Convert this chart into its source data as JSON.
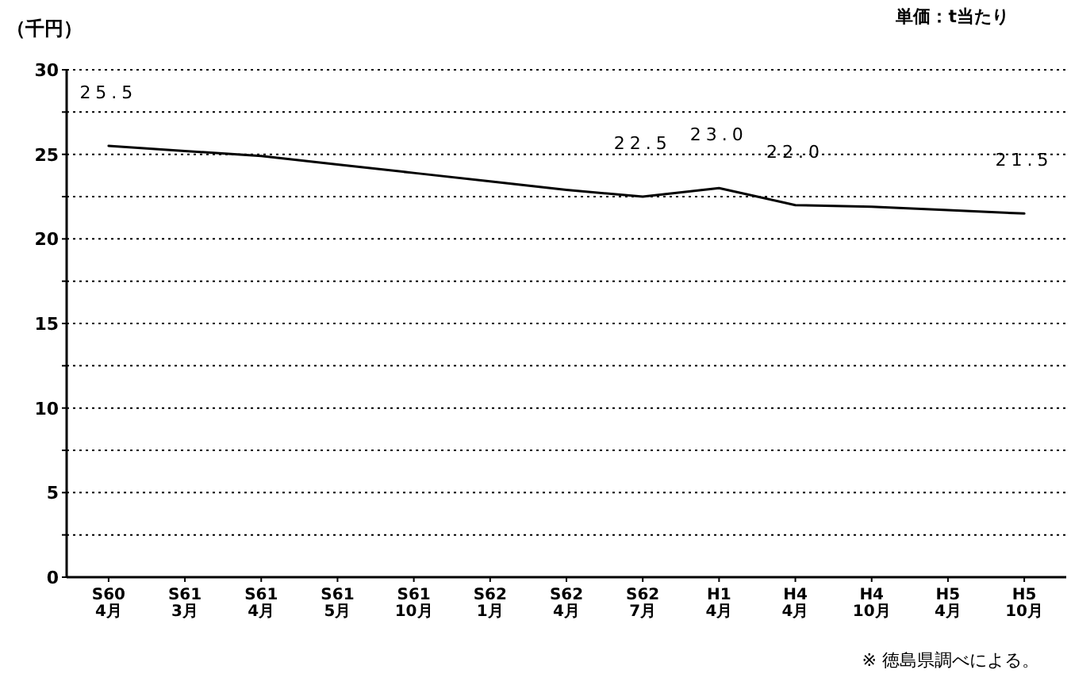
{
  "chart_data": {
    "type": "line",
    "ylabel": "（千円）",
    "categories": [
      "S60\n4月",
      "S61\n3月",
      "S61\n4月",
      "S61\n5月",
      "S61\n10月",
      "S62\n1月",
      "S62\n4月",
      "S62\n7月",
      "H1\n4月",
      "H4\n4月",
      "H4\n10月",
      "H5\n4月",
      "H5\n10月"
    ],
    "series": [
      {
        "color": "#000000",
        "values": [
          25.5,
          25.2,
          24.9,
          24.4,
          23.9,
          23.4,
          22.9,
          22.5,
          23.0,
          22.0,
          21.9,
          21.7,
          21.5
        ],
        "value_labels": [
          "25.5",
          null,
          null,
          null,
          null,
          null,
          null,
          "22.5",
          "23.0",
          "22.0",
          null,
          null,
          "21.5"
        ]
      }
    ],
    "ylim": [
      0,
      30
    ],
    "yticks": [
      0,
      {
        "value": 2.5,
        "label": null
      },
      5,
      {
        "value": 7.5,
        "label": null
      },
      10,
      {
        "value": 12.5,
        "label": null
      },
      15,
      {
        "value": 17.5,
        "label": null
      },
      20,
      {
        "value": 22.5,
        "label": null
      },
      25,
      {
        "value": 27.5,
        "label": null
      },
      30
    ],
    "grid": "y",
    "marker": "none",
    "line_style": "solid",
    "annotations": [
      "単価：t当たり",
      "※ 徳島県調べによる。"
    ]
  }
}
